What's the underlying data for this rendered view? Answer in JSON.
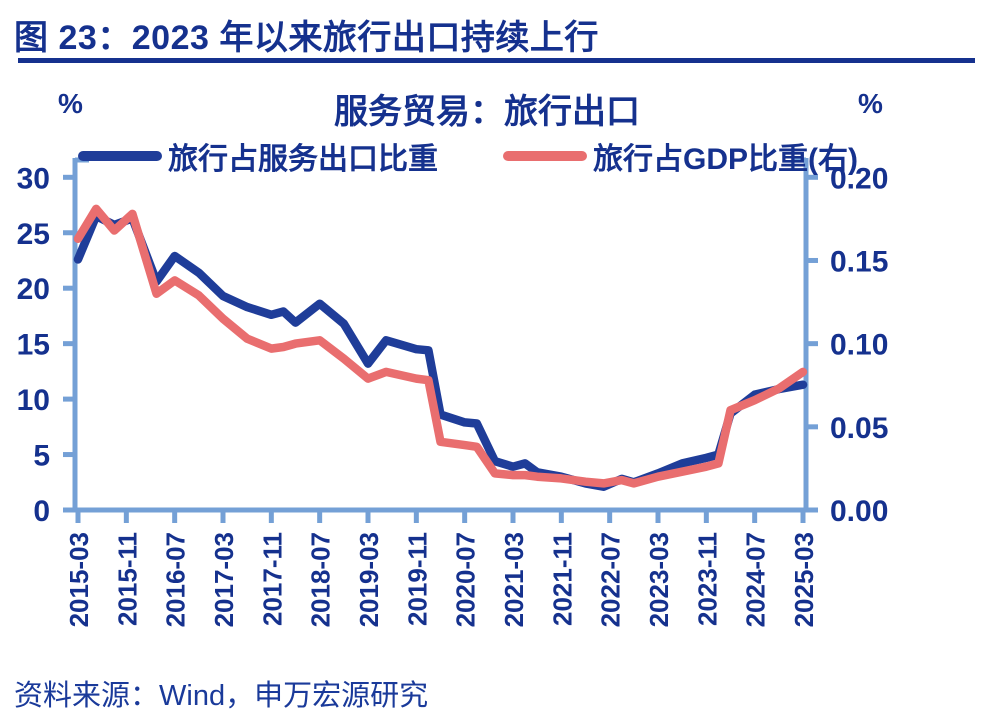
{
  "header": {
    "title": "图 23：2023 年以来旅行出口持续上行"
  },
  "chart": {
    "title": "服务贸易：旅行出口",
    "left_unit": "%",
    "right_unit": "%",
    "legend": [
      {
        "label": "旅行占服务出口比重",
        "color": "#1f3d99"
      },
      {
        "label": "旅行占GDP比重(右)",
        "color": "#e96e6f"
      }
    ]
  },
  "colors": {
    "navy_text": "#15318e",
    "axis_blue": "#74a0d6",
    "line_blue": "#1f3d99",
    "line_red": "#e96e6f"
  },
  "source": {
    "text": "资料来源：Wind，申万宏源研究"
  },
  "chart_data": {
    "type": "line",
    "title": "服务贸易：旅行出口",
    "x_tick_labels": [
      "2015-03",
      "2015-11",
      "2016-07",
      "2017-03",
      "2017-11",
      "2018-07",
      "2019-03",
      "2019-11",
      "2020-07",
      "2021-03",
      "2021-11",
      "2022-07",
      "2023-03",
      "2023-11",
      "2024-07",
      "2025-03"
    ],
    "left_axis": {
      "min": 0,
      "max": 30,
      "ticks": [
        0,
        5,
        10,
        15,
        20,
        25,
        30
      ],
      "unit": "%"
    },
    "right_axis": {
      "min": 0,
      "max": 0.2,
      "ticks": [
        0.0,
        0.05,
        0.1,
        0.15,
        0.2
      ],
      "unit": "%"
    },
    "grid": false,
    "legend_position": "top",
    "series": [
      {
        "name": "旅行占服务出口比重",
        "axis": "left",
        "color": "#1f3d99",
        "points": [
          [
            "2015-03",
            22.6
          ],
          [
            "2015-06",
            26.5
          ],
          [
            "2015-09",
            25.7
          ],
          [
            "2015-12",
            26.3
          ],
          [
            "2016-04",
            20.6
          ],
          [
            "2016-07",
            22.9
          ],
          [
            "2016-11",
            21.4
          ],
          [
            "2017-03",
            19.3
          ],
          [
            "2017-07",
            18.3
          ],
          [
            "2017-11",
            17.6
          ],
          [
            "2018-01",
            17.9
          ],
          [
            "2018-03",
            16.9
          ],
          [
            "2018-07",
            18.6
          ],
          [
            "2018-11",
            16.8
          ],
          [
            "2019-03",
            13.2
          ],
          [
            "2019-06",
            15.3
          ],
          [
            "2019-11",
            14.5
          ],
          [
            "2020-01",
            14.4
          ],
          [
            "2020-03",
            8.6
          ],
          [
            "2020-07",
            7.9
          ],
          [
            "2020-09",
            7.8
          ],
          [
            "2020-12",
            4.4
          ],
          [
            "2021-03",
            3.9
          ],
          [
            "2021-05",
            4.2
          ],
          [
            "2021-07",
            3.4
          ],
          [
            "2021-11",
            3.0
          ],
          [
            "2022-03",
            2.4
          ],
          [
            "2022-06",
            2.1
          ],
          [
            "2022-09",
            2.8
          ],
          [
            "2022-11",
            2.5
          ],
          [
            "2023-03",
            3.3
          ],
          [
            "2023-07",
            4.2
          ],
          [
            "2023-11",
            4.7
          ],
          [
            "2024-01",
            5.0
          ],
          [
            "2024-03",
            8.7
          ],
          [
            "2024-07",
            10.4
          ],
          [
            "2024-11",
            10.9
          ],
          [
            "2025-03",
            11.3
          ]
        ]
      },
      {
        "name": "旅行占GDP比重(右)",
        "axis": "right",
        "color": "#e96e6f",
        "points": [
          [
            "2015-03",
            0.163
          ],
          [
            "2015-06",
            0.181
          ],
          [
            "2015-09",
            0.168
          ],
          [
            "2015-12",
            0.178
          ],
          [
            "2016-04",
            0.13
          ],
          [
            "2016-07",
            0.138
          ],
          [
            "2016-11",
            0.129
          ],
          [
            "2017-03",
            0.115
          ],
          [
            "2017-07",
            0.103
          ],
          [
            "2017-11",
            0.097
          ],
          [
            "2018-01",
            0.098
          ],
          [
            "2018-03",
            0.1
          ],
          [
            "2018-07",
            0.102
          ],
          [
            "2018-11",
            0.091
          ],
          [
            "2019-03",
            0.079
          ],
          [
            "2019-06",
            0.083
          ],
          [
            "2019-11",
            0.079
          ],
          [
            "2020-01",
            0.078
          ],
          [
            "2020-03",
            0.041
          ],
          [
            "2020-07",
            0.039
          ],
          [
            "2020-09",
            0.038
          ],
          [
            "2020-12",
            0.022
          ],
          [
            "2021-03",
            0.021
          ],
          [
            "2021-05",
            0.021
          ],
          [
            "2021-07",
            0.02
          ],
          [
            "2021-11",
            0.019
          ],
          [
            "2022-03",
            0.017
          ],
          [
            "2022-06",
            0.016
          ],
          [
            "2022-09",
            0.018
          ],
          [
            "2022-11",
            0.016
          ],
          [
            "2023-03",
            0.02
          ],
          [
            "2023-07",
            0.023
          ],
          [
            "2023-11",
            0.026
          ],
          [
            "2024-01",
            0.028
          ],
          [
            "2024-03",
            0.06
          ],
          [
            "2024-07",
            0.066
          ],
          [
            "2024-11",
            0.073
          ],
          [
            "2025-03",
            0.083
          ]
        ]
      }
    ]
  }
}
